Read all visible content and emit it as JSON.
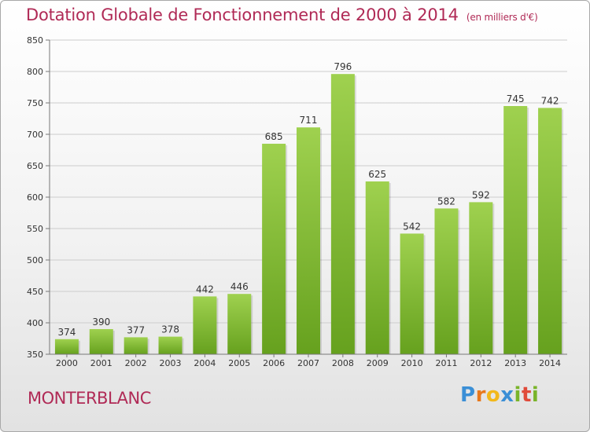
{
  "header": {
    "title": "Dotation Globale de Fonctionnement de 2000 à 2014",
    "unit": "(en milliers d'€)"
  },
  "footer": {
    "town": "MONTERBLANC",
    "logo": {
      "letters": [
        "P",
        "r",
        "o",
        "x",
        "i",
        "t",
        "i"
      ],
      "colors": [
        "#3b8fd6",
        "#e8781c",
        "#f2b81b",
        "#3b8fd6",
        "#7ab42a",
        "#e04a3a",
        "#7ab42a"
      ]
    }
  },
  "colors": {
    "bar": "#8cc63f",
    "bar_dark": "#6aa523",
    "title": "#b02a56",
    "grid": "#cccccc"
  },
  "chart_data": {
    "type": "bar",
    "title": "Dotation Globale de Fonctionnement de 2000 à 2014",
    "subtitle": "(en milliers d'€)",
    "categories": [
      "2000",
      "2001",
      "2002",
      "2003",
      "2004",
      "2005",
      "2006",
      "2007",
      "2008",
      "2009",
      "2010",
      "2011",
      "2012",
      "2013",
      "2014"
    ],
    "values": [
      374,
      390,
      377,
      378,
      442,
      446,
      685,
      711,
      796,
      625,
      542,
      582,
      592,
      745,
      742
    ],
    "ylim": [
      350,
      850
    ],
    "yticks": [
      350,
      400,
      450,
      500,
      550,
      600,
      650,
      700,
      750,
      800,
      850
    ],
    "xlabel": "",
    "ylabel": "",
    "grid": true,
    "legend": "none"
  }
}
